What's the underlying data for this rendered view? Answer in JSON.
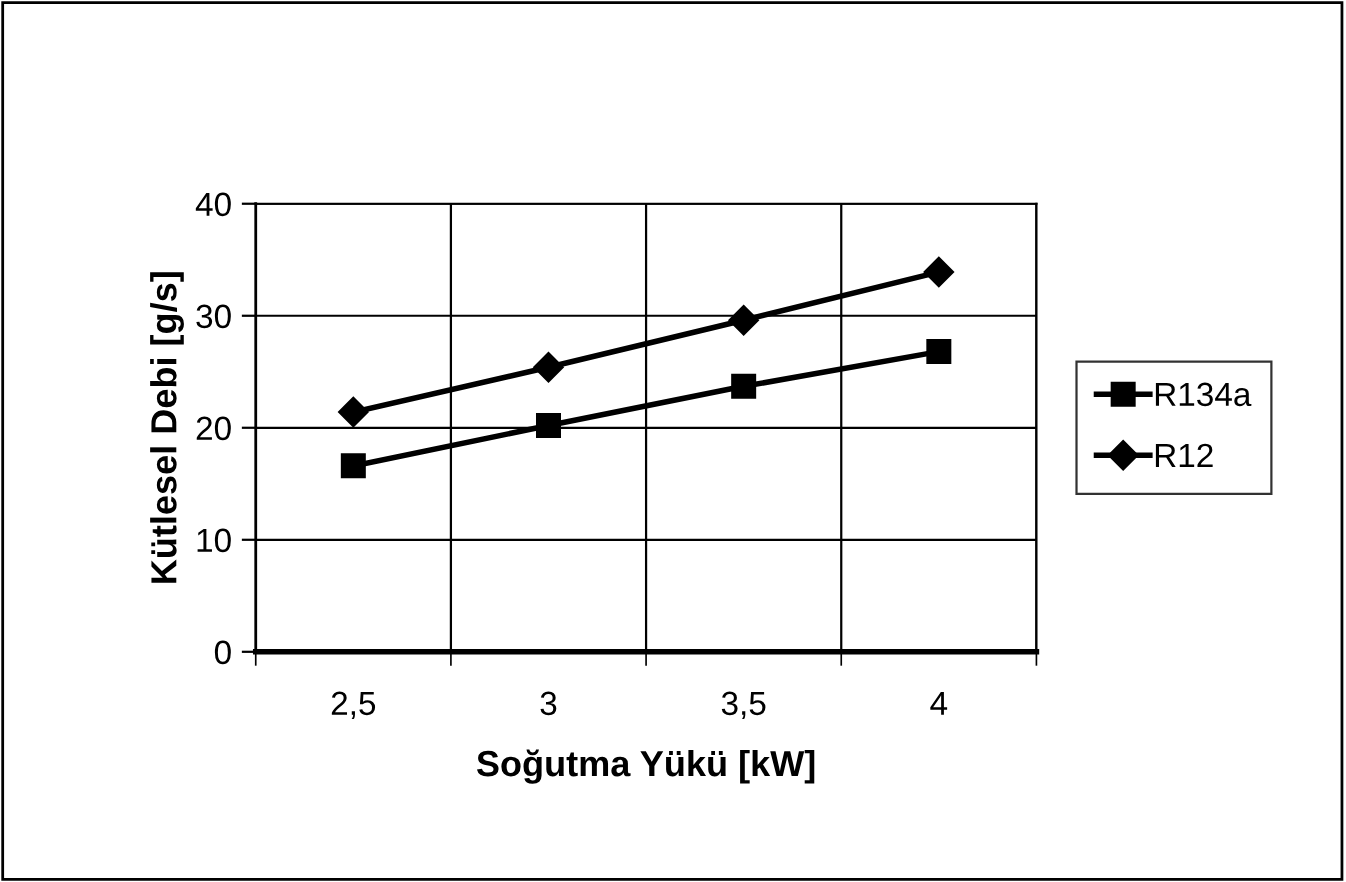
{
  "chart_data": {
    "type": "line",
    "xlabel": "Soğutma Yükü [kW]",
    "ylabel": "Kütlesel Debi [g/s]",
    "categories": [
      "2,5",
      "3",
      "3,5",
      "4"
    ],
    "series": [
      {
        "name": "R134a",
        "color": "#000000",
        "marker": "square",
        "values": [
          16.6,
          20.2,
          23.7,
          26.8
        ]
      },
      {
        "name": "R12",
        "color": "#000000",
        "marker": "diamond",
        "values": [
          21.4,
          25.4,
          29.6,
          33.9
        ]
      }
    ],
    "ylim": [
      0,
      40
    ],
    "yticks": [
      0,
      10,
      20,
      30,
      40
    ],
    "grid": true,
    "legend": "right",
    "line_style": "solid"
  }
}
